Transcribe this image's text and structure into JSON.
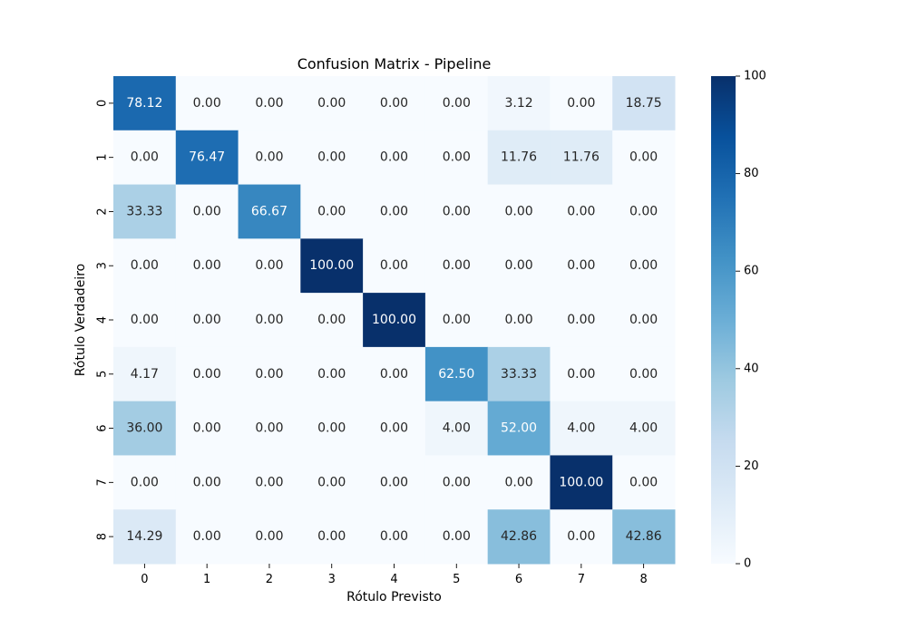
{
  "chart_data": {
    "type": "heatmap",
    "title": "Confusion Matrix - Pipeline",
    "xlabel": "Rótulo Previsto",
    "ylabel": "Rótulo Verdadeiro",
    "x_categories": [
      "0",
      "1",
      "2",
      "3",
      "4",
      "5",
      "6",
      "7",
      "8"
    ],
    "y_categories": [
      "0",
      "1",
      "2",
      "3",
      "4",
      "5",
      "6",
      "7",
      "8"
    ],
    "values": [
      [
        78.12,
        0.0,
        0.0,
        0.0,
        0.0,
        0.0,
        3.12,
        0.0,
        18.75
      ],
      [
        0.0,
        76.47,
        0.0,
        0.0,
        0.0,
        0.0,
        11.76,
        11.76,
        0.0
      ],
      [
        33.33,
        0.0,
        66.67,
        0.0,
        0.0,
        0.0,
        0.0,
        0.0,
        0.0
      ],
      [
        0.0,
        0.0,
        0.0,
        100.0,
        0.0,
        0.0,
        0.0,
        0.0,
        0.0
      ],
      [
        0.0,
        0.0,
        0.0,
        0.0,
        100.0,
        0.0,
        0.0,
        0.0,
        0.0
      ],
      [
        4.17,
        0.0,
        0.0,
        0.0,
        0.0,
        62.5,
        33.33,
        0.0,
        0.0
      ],
      [
        36.0,
        0.0,
        0.0,
        0.0,
        0.0,
        4.0,
        52.0,
        4.0,
        4.0
      ],
      [
        0.0,
        0.0,
        0.0,
        0.0,
        0.0,
        0.0,
        0.0,
        100.0,
        0.0
      ],
      [
        14.29,
        0.0,
        0.0,
        0.0,
        0.0,
        0.0,
        42.86,
        0.0,
        42.86
      ]
    ],
    "value_format": "0.00",
    "colormap": "Blues",
    "colorbar": {
      "range": [
        0,
        100
      ],
      "ticks": [
        0,
        20,
        40,
        60,
        80,
        100
      ]
    },
    "grid": false
  }
}
